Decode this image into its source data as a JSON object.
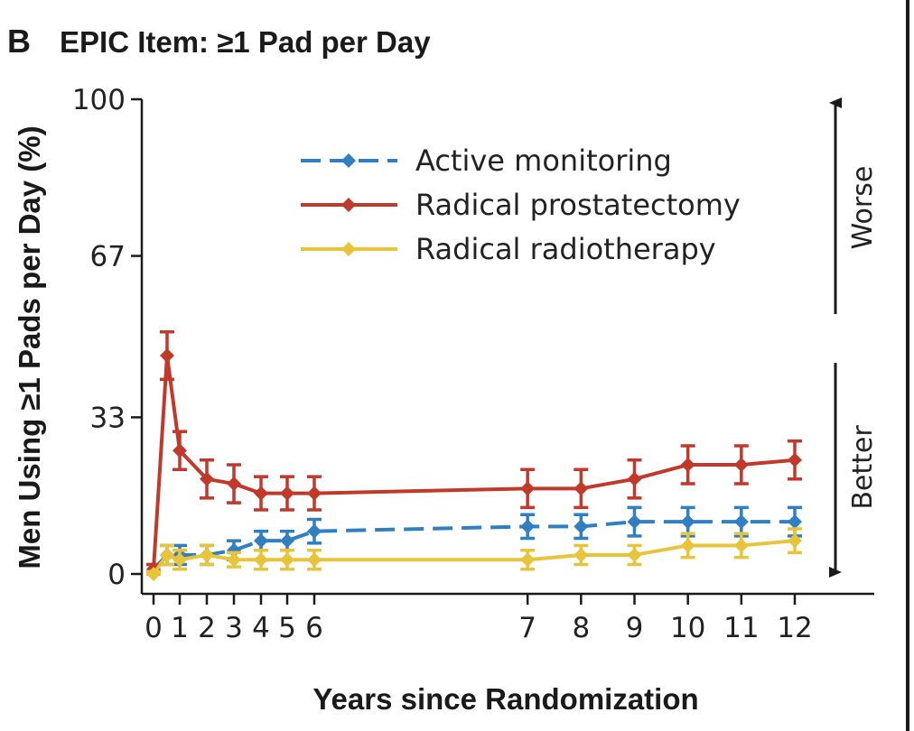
{
  "panel_letter": "B",
  "chart_data": {
    "type": "line",
    "title": "EPIC Item: ≥1 Pad per Day",
    "xlabel": "Years since Randomization",
    "ylabel": "Men Using ≥1 Pads per Day (%)",
    "xlim": [
      0,
      12
    ],
    "ylim": [
      0,
      100
    ],
    "x_ticks": [
      0,
      1,
      2,
      3,
      4,
      5,
      6,
      7,
      8,
      9,
      10,
      11,
      12
    ],
    "y_ticks": [
      0,
      33,
      67,
      100
    ],
    "legend_position": "top-right",
    "side_labels": {
      "up": "Worse",
      "down": "Better"
    },
    "series": [
      {
        "name": "Active monitoring",
        "color": "#2f7fc1",
        "dashed": true,
        "x": [
          0,
          0.5,
          1,
          2,
          3,
          4,
          5,
          6,
          7,
          8,
          9,
          10,
          11,
          12
        ],
        "y": [
          1,
          4,
          4,
          4,
          5,
          7,
          7,
          9,
          10,
          10,
          11,
          11,
          11,
          11
        ],
        "err": [
          1,
          2,
          2,
          2,
          2,
          2,
          2,
          2.5,
          2.5,
          2.5,
          3,
          3,
          3,
          3
        ]
      },
      {
        "name": "Radical prostatectomy",
        "color": "#c0392b",
        "dashed": false,
        "x": [
          0,
          0.5,
          1,
          2,
          3,
          4,
          5,
          6,
          7,
          8,
          9,
          10,
          11,
          12
        ],
        "y": [
          1,
          46,
          26,
          20,
          19,
          17,
          17,
          17,
          18,
          18,
          20,
          23,
          23,
          24
        ],
        "err": [
          1,
          5,
          4,
          4,
          4,
          3.5,
          3.5,
          3.5,
          4,
          4,
          4,
          4,
          4,
          4
        ]
      },
      {
        "name": "Radical radiotherapy",
        "color": "#e8c43a",
        "dashed": false,
        "x": [
          0,
          0.5,
          1,
          2,
          3,
          4,
          5,
          6,
          7,
          8,
          9,
          10,
          11,
          12
        ],
        "y": [
          0,
          4,
          3,
          4,
          3,
          3,
          3,
          3,
          3,
          4,
          4,
          6,
          6,
          7
        ],
        "err": [
          0.5,
          2,
          2,
          2,
          1.5,
          2,
          2,
          2,
          2,
          2,
          2,
          2.5,
          2.5,
          2.5
        ]
      }
    ]
  }
}
